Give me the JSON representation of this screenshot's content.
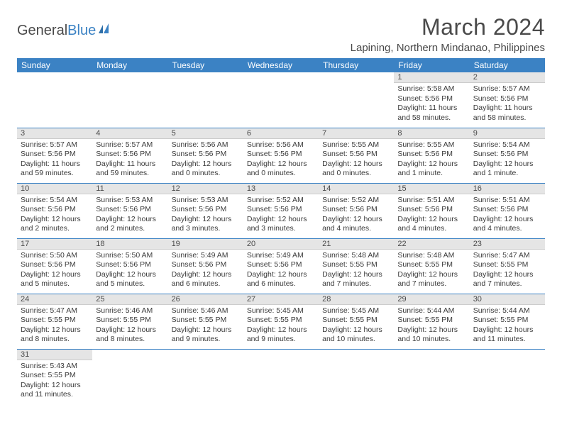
{
  "logo": {
    "word1": "General",
    "word2": "Blue"
  },
  "title": "March 2024",
  "location": "Lapining, Northern Mindanao, Philippines",
  "colors": {
    "header_bg": "#3b82c4",
    "header_text": "#ffffff",
    "daynum_bg": "#e5e5e5",
    "border": "#3b82c4",
    "text": "#4a4a4a"
  },
  "weekdays": [
    "Sunday",
    "Monday",
    "Tuesday",
    "Wednesday",
    "Thursday",
    "Friday",
    "Saturday"
  ],
  "weeks": [
    [
      null,
      null,
      null,
      null,
      null,
      {
        "n": "1",
        "sr": "5:58 AM",
        "ss": "5:56 PM",
        "dl": "11 hours and 58 minutes."
      },
      {
        "n": "2",
        "sr": "5:57 AM",
        "ss": "5:56 PM",
        "dl": "11 hours and 58 minutes."
      }
    ],
    [
      {
        "n": "3",
        "sr": "5:57 AM",
        "ss": "5:56 PM",
        "dl": "11 hours and 59 minutes."
      },
      {
        "n": "4",
        "sr": "5:57 AM",
        "ss": "5:56 PM",
        "dl": "11 hours and 59 minutes."
      },
      {
        "n": "5",
        "sr": "5:56 AM",
        "ss": "5:56 PM",
        "dl": "12 hours and 0 minutes."
      },
      {
        "n": "6",
        "sr": "5:56 AM",
        "ss": "5:56 PM",
        "dl": "12 hours and 0 minutes."
      },
      {
        "n": "7",
        "sr": "5:55 AM",
        "ss": "5:56 PM",
        "dl": "12 hours and 0 minutes."
      },
      {
        "n": "8",
        "sr": "5:55 AM",
        "ss": "5:56 PM",
        "dl": "12 hours and 1 minute."
      },
      {
        "n": "9",
        "sr": "5:54 AM",
        "ss": "5:56 PM",
        "dl": "12 hours and 1 minute."
      }
    ],
    [
      {
        "n": "10",
        "sr": "5:54 AM",
        "ss": "5:56 PM",
        "dl": "12 hours and 2 minutes."
      },
      {
        "n": "11",
        "sr": "5:53 AM",
        "ss": "5:56 PM",
        "dl": "12 hours and 2 minutes."
      },
      {
        "n": "12",
        "sr": "5:53 AM",
        "ss": "5:56 PM",
        "dl": "12 hours and 3 minutes."
      },
      {
        "n": "13",
        "sr": "5:52 AM",
        "ss": "5:56 PM",
        "dl": "12 hours and 3 minutes."
      },
      {
        "n": "14",
        "sr": "5:52 AM",
        "ss": "5:56 PM",
        "dl": "12 hours and 4 minutes."
      },
      {
        "n": "15",
        "sr": "5:51 AM",
        "ss": "5:56 PM",
        "dl": "12 hours and 4 minutes."
      },
      {
        "n": "16",
        "sr": "5:51 AM",
        "ss": "5:56 PM",
        "dl": "12 hours and 4 minutes."
      }
    ],
    [
      {
        "n": "17",
        "sr": "5:50 AM",
        "ss": "5:56 PM",
        "dl": "12 hours and 5 minutes."
      },
      {
        "n": "18",
        "sr": "5:50 AM",
        "ss": "5:56 PM",
        "dl": "12 hours and 5 minutes."
      },
      {
        "n": "19",
        "sr": "5:49 AM",
        "ss": "5:56 PM",
        "dl": "12 hours and 6 minutes."
      },
      {
        "n": "20",
        "sr": "5:49 AM",
        "ss": "5:56 PM",
        "dl": "12 hours and 6 minutes."
      },
      {
        "n": "21",
        "sr": "5:48 AM",
        "ss": "5:55 PM",
        "dl": "12 hours and 7 minutes."
      },
      {
        "n": "22",
        "sr": "5:48 AM",
        "ss": "5:55 PM",
        "dl": "12 hours and 7 minutes."
      },
      {
        "n": "23",
        "sr": "5:47 AM",
        "ss": "5:55 PM",
        "dl": "12 hours and 7 minutes."
      }
    ],
    [
      {
        "n": "24",
        "sr": "5:47 AM",
        "ss": "5:55 PM",
        "dl": "12 hours and 8 minutes."
      },
      {
        "n": "25",
        "sr": "5:46 AM",
        "ss": "5:55 PM",
        "dl": "12 hours and 8 minutes."
      },
      {
        "n": "26",
        "sr": "5:46 AM",
        "ss": "5:55 PM",
        "dl": "12 hours and 9 minutes."
      },
      {
        "n": "27",
        "sr": "5:45 AM",
        "ss": "5:55 PM",
        "dl": "12 hours and 9 minutes."
      },
      {
        "n": "28",
        "sr": "5:45 AM",
        "ss": "5:55 PM",
        "dl": "12 hours and 10 minutes."
      },
      {
        "n": "29",
        "sr": "5:44 AM",
        "ss": "5:55 PM",
        "dl": "12 hours and 10 minutes."
      },
      {
        "n": "30",
        "sr": "5:44 AM",
        "ss": "5:55 PM",
        "dl": "12 hours and 11 minutes."
      }
    ],
    [
      {
        "n": "31",
        "sr": "5:43 AM",
        "ss": "5:55 PM",
        "dl": "12 hours and 11 minutes."
      },
      null,
      null,
      null,
      null,
      null,
      null
    ]
  ],
  "labels": {
    "sunrise": "Sunrise:",
    "sunset": "Sunset:",
    "daylight": "Daylight:"
  }
}
